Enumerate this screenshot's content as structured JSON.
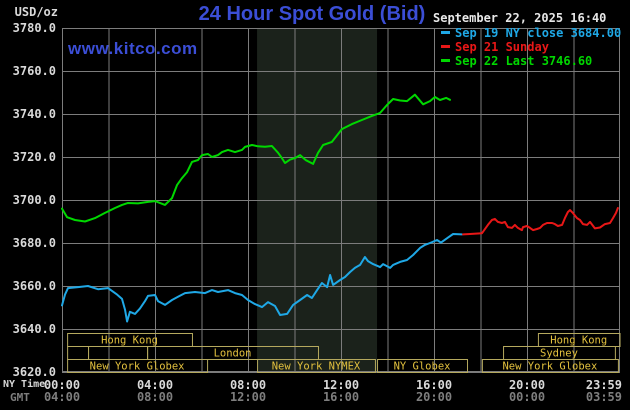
{
  "header": {
    "title": "24 Hour Spot Gold (Bid)",
    "datetime": "September 22, 2025 16:40",
    "watermark": "www.kitco.com",
    "title_color": "#3b4ed6",
    "datetime_color": "#e8e8e8"
  },
  "legend": {
    "items": [
      {
        "text": "Sep 19 NY close 3684.00",
        "color": "#1fa8e6"
      },
      {
        "text": "Sep 21 Sunday",
        "color": "#e81717"
      },
      {
        "text": "Sep 22 Last 3746.60",
        "color": "#00d800"
      }
    ]
  },
  "chart_data": {
    "type": "line",
    "title": "24 Hour Spot Gold (Bid)",
    "ylabel": "USD/oz",
    "ylim": [
      3620,
      3780
    ],
    "ytick_step": 20,
    "xlim_hours": [
      0,
      24
    ],
    "grid": true,
    "colors": {
      "background": "#000000",
      "gridline": "#7c7c7c",
      "axis_text": "#d9d9d9",
      "gmt_text": "#7e7e7e",
      "band": "#1b221b",
      "session_border": "#b5a95e",
      "session_text": "#e3c13e"
    },
    "xaxis": {
      "ny_label": "NY Time",
      "gmt_label": "GMT",
      "ticks": [
        {
          "h": 0,
          "ny": "00:00",
          "gmt": "04:00"
        },
        {
          "h": 4,
          "ny": "04:00",
          "gmt": "08:00"
        },
        {
          "h": 8,
          "ny": "08:00",
          "gmt": "12:00"
        },
        {
          "h": 12,
          "ny": "12:00",
          "gmt": "16:00"
        },
        {
          "h": 16,
          "ny": "16:00",
          "gmt": "20:00"
        },
        {
          "h": 20,
          "ny": "20:00",
          "gmt": "00:00"
        },
        {
          "h": 23.98,
          "ny": "23:59",
          "gmt": "03:59"
        }
      ]
    },
    "highlight_band": {
      "from_h": 8.39,
      "to_h": 13.55
    },
    "sessions": {
      "rows": [
        {
          "boxes": [
            {
              "label": "Hong Kong",
              "from_h": 0.22,
              "to_h": 5.59
            },
            {
              "label": "Hong Kong",
              "from_h": 20.47,
              "to_h": 23.98
            }
          ]
        },
        {
          "boxes": [
            {
              "label": "",
              "from_h": 0.22,
              "to_h": 1.12
            },
            {
              "label": "",
              "from_h": 1.12,
              "to_h": 3.66
            },
            {
              "label": "London",
              "from_h": 3.66,
              "to_h": 11.01
            },
            {
              "label": "Sydney",
              "from_h": 18.97,
              "to_h": 23.78
            }
          ]
        },
        {
          "boxes": [
            {
              "label": "New York Globex",
              "from_h": 0.22,
              "to_h": 6.24
            },
            {
              "label": "New York NYMEX",
              "from_h": 8.39,
              "to_h": 13.46
            },
            {
              "label": "NY Globex",
              "from_h": 13.55,
              "to_h": 17.42
            },
            {
              "label": "New York Globex",
              "from_h": 18.06,
              "to_h": 23.91
            }
          ]
        }
      ]
    },
    "series": [
      {
        "name": "Sep 19 NY close",
        "color": "#1fa8e6",
        "points": [
          [
            0.0,
            3651
          ],
          [
            0.13,
            3656
          ],
          [
            0.26,
            3659
          ],
          [
            0.69,
            3659.5
          ],
          [
            1.12,
            3660
          ],
          [
            1.55,
            3658.5
          ],
          [
            1.98,
            3659
          ],
          [
            2.37,
            3656
          ],
          [
            2.58,
            3654
          ],
          [
            2.71,
            3649
          ],
          [
            2.8,
            3643.5
          ],
          [
            2.92,
            3648
          ],
          [
            3.14,
            3647
          ],
          [
            3.35,
            3649.5
          ],
          [
            3.57,
            3653
          ],
          [
            3.7,
            3655.4
          ],
          [
            4.0,
            3655.8
          ],
          [
            4.13,
            3653
          ],
          [
            4.43,
            3651.2
          ],
          [
            4.73,
            3653.5
          ],
          [
            4.99,
            3655
          ],
          [
            5.29,
            3656.7
          ],
          [
            5.72,
            3657.2
          ],
          [
            6.15,
            3656.7
          ],
          [
            6.45,
            3658.1
          ],
          [
            6.71,
            3657.2
          ],
          [
            7.14,
            3658.1
          ],
          [
            7.44,
            3656.7
          ],
          [
            7.74,
            3655.8
          ],
          [
            8.0,
            3653.5
          ],
          [
            8.3,
            3651.6
          ],
          [
            8.6,
            3650.2
          ],
          [
            8.86,
            3652.5
          ],
          [
            9.16,
            3650.7
          ],
          [
            9.38,
            3646.5
          ],
          [
            9.68,
            3647
          ],
          [
            9.94,
            3651.2
          ],
          [
            10.24,
            3653.5
          ],
          [
            10.54,
            3655.8
          ],
          [
            10.75,
            3654.4
          ],
          [
            10.97,
            3658.1
          ],
          [
            11.18,
            3661.4
          ],
          [
            11.4,
            3659.5
          ],
          [
            11.53,
            3665.1
          ],
          [
            11.66,
            3660.5
          ],
          [
            11.96,
            3662.8
          ],
          [
            12.17,
            3664.2
          ],
          [
            12.39,
            3666.5
          ],
          [
            12.6,
            3668.4
          ],
          [
            12.82,
            3669.8
          ],
          [
            13.03,
            3673.5
          ],
          [
            13.16,
            3671.6
          ],
          [
            13.38,
            3670.2
          ],
          [
            13.68,
            3668.8
          ],
          [
            13.81,
            3670.2
          ],
          [
            14.11,
            3668.4
          ],
          [
            14.24,
            3669.8
          ],
          [
            14.54,
            3671.2
          ],
          [
            14.84,
            3672.1
          ],
          [
            15.1,
            3674.4
          ],
          [
            15.4,
            3677.7
          ],
          [
            15.61,
            3679.1
          ],
          [
            15.83,
            3680
          ],
          [
            16.13,
            3681.4
          ],
          [
            16.3,
            3680.2
          ],
          [
            16.6,
            3682.5
          ],
          [
            16.82,
            3684.2
          ],
          [
            17.2,
            3684
          ]
        ]
      },
      {
        "name": "Sep 21 Sunday",
        "color": "#e81717",
        "points": [
          [
            17.25,
            3684
          ],
          [
            17.55,
            3684.2
          ],
          [
            18.06,
            3684.5
          ],
          [
            18.32,
            3688.4
          ],
          [
            18.49,
            3690.7
          ],
          [
            18.62,
            3691.2
          ],
          [
            18.75,
            3689.8
          ],
          [
            18.92,
            3689.3
          ],
          [
            19.05,
            3689.8
          ],
          [
            19.18,
            3687.4
          ],
          [
            19.35,
            3687
          ],
          [
            19.48,
            3688.4
          ],
          [
            19.61,
            3687
          ],
          [
            19.78,
            3686
          ],
          [
            19.83,
            3687.4
          ],
          [
            20.0,
            3687.9
          ],
          [
            20.13,
            3687
          ],
          [
            20.26,
            3686
          ],
          [
            20.43,
            3686.5
          ],
          [
            20.56,
            3687
          ],
          [
            20.69,
            3688.4
          ],
          [
            20.86,
            3689.3
          ],
          [
            21.08,
            3689.3
          ],
          [
            21.2,
            3688.8
          ],
          [
            21.33,
            3687.9
          ],
          [
            21.51,
            3688.4
          ],
          [
            21.63,
            3691.6
          ],
          [
            21.76,
            3694.4
          ],
          [
            21.85,
            3695.3
          ],
          [
            21.98,
            3693.9
          ],
          [
            22.15,
            3691.6
          ],
          [
            22.28,
            3690.7
          ],
          [
            22.41,
            3688.8
          ],
          [
            22.58,
            3688.4
          ],
          [
            22.71,
            3689.8
          ],
          [
            22.92,
            3686.8
          ],
          [
            23.14,
            3687.2
          ],
          [
            23.35,
            3688.8
          ],
          [
            23.57,
            3689.3
          ],
          [
            23.7,
            3691.6
          ],
          [
            23.83,
            3694
          ],
          [
            23.91,
            3696.3
          ]
        ]
      },
      {
        "name": "Sep 22 Last",
        "color": "#00d800",
        "points": [
          [
            0.0,
            3696
          ],
          [
            0.22,
            3692
          ],
          [
            0.56,
            3690.7
          ],
          [
            0.99,
            3690
          ],
          [
            1.42,
            3691.6
          ],
          [
            1.85,
            3694
          ],
          [
            2.28,
            3696.3
          ],
          [
            2.58,
            3697.7
          ],
          [
            2.84,
            3698.6
          ],
          [
            3.27,
            3698.4
          ],
          [
            3.7,
            3699.1
          ],
          [
            4.0,
            3699.5
          ],
          [
            4.43,
            3697.7
          ],
          [
            4.73,
            3700.9
          ],
          [
            4.95,
            3707
          ],
          [
            5.16,
            3710.2
          ],
          [
            5.38,
            3713
          ],
          [
            5.59,
            3717.7
          ],
          [
            5.85,
            3718.6
          ],
          [
            6.02,
            3720.9
          ],
          [
            6.28,
            3721.4
          ],
          [
            6.45,
            3720
          ],
          [
            6.71,
            3720.9
          ],
          [
            6.88,
            3722.3
          ],
          [
            7.14,
            3723.3
          ],
          [
            7.44,
            3722.3
          ],
          [
            7.74,
            3723.3
          ],
          [
            7.87,
            3724.7
          ],
          [
            8.17,
            3725.6
          ],
          [
            8.43,
            3725
          ],
          [
            8.73,
            3724.8
          ],
          [
            9.03,
            3725.1
          ],
          [
            9.29,
            3722
          ],
          [
            9.46,
            3719.5
          ],
          [
            9.59,
            3717.2
          ],
          [
            9.81,
            3718.8
          ],
          [
            10.02,
            3719.5
          ],
          [
            10.24,
            3720.9
          ],
          [
            10.49,
            3718.5
          ],
          [
            10.8,
            3716.8
          ],
          [
            11.01,
            3721.9
          ],
          [
            11.23,
            3725.6
          ],
          [
            11.61,
            3727
          ],
          [
            12.04,
            3733
          ],
          [
            12.47,
            3735.3
          ],
          [
            12.9,
            3737.2
          ],
          [
            13.33,
            3739.1
          ],
          [
            13.68,
            3740.5
          ],
          [
            13.98,
            3744.2
          ],
          [
            14.24,
            3747
          ],
          [
            14.54,
            3746.3
          ],
          [
            14.84,
            3746
          ],
          [
            15.18,
            3749
          ],
          [
            15.53,
            3744.5
          ],
          [
            15.83,
            3746
          ],
          [
            16.04,
            3747.9
          ],
          [
            16.26,
            3746.5
          ],
          [
            16.52,
            3747.5
          ],
          [
            16.69,
            3746.6
          ]
        ]
      }
    ]
  }
}
